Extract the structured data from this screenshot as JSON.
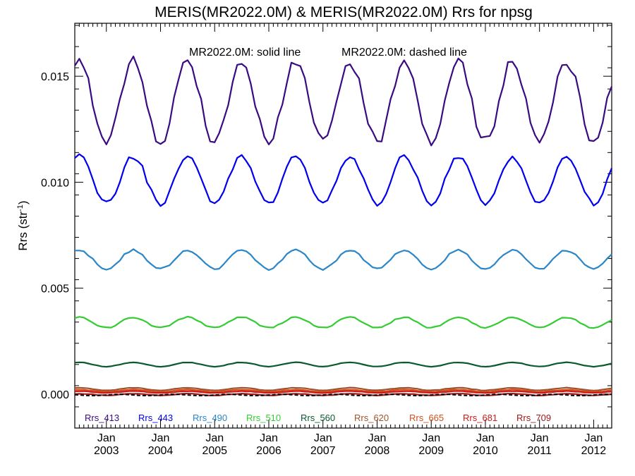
{
  "chart_data": {
    "type": "line",
    "title": "MERIS(MR2022.0M) & MERIS(MR2022.0M)  Rrs for npsg",
    "annotations": {
      "solid": "MR2022.0M: solid line",
      "dashed": "MR2022.0M: dashed line"
    },
    "ylabel": "Rrs (str",
    "ylabel_sup": "-1",
    "ylabel_close": ")",
    "ylim": [
      -0.0016,
      0.0175
    ],
    "xlim": [
      "2002-06",
      "2012-05"
    ],
    "y_ticks": [
      {
        "value": 0.0,
        "label": "0.000"
      },
      {
        "value": 0.005,
        "label": "0.005"
      },
      {
        "value": 0.01,
        "label": "0.010"
      },
      {
        "value": 0.015,
        "label": "0.015"
      }
    ],
    "x_ticks": [
      {
        "date": "2003-01",
        "month": "Jan",
        "year": "2003"
      },
      {
        "date": "2004-01",
        "month": "Jan",
        "year": "2004"
      },
      {
        "date": "2005-01",
        "month": "Jan",
        "year": "2005"
      },
      {
        "date": "2006-01",
        "month": "Jan",
        "year": "2006"
      },
      {
        "date": "2007-01",
        "month": "Jan",
        "year": "2007"
      },
      {
        "date": "2008-01",
        "month": "Jan",
        "year": "2008"
      },
      {
        "date": "2009-01",
        "month": "Jan",
        "year": "2009"
      },
      {
        "date": "2010-01",
        "month": "Jan",
        "year": "2010"
      },
      {
        "date": "2011-01",
        "month": "Jan",
        "year": "2011"
      },
      {
        "date": "2012-01",
        "month": "Jan",
        "year": "2012"
      }
    ],
    "series": [
      {
        "name": "Rrs_413",
        "color": "#3a0a82",
        "base": 0.0138,
        "amp": 0.0019,
        "jitter": 0.00025
      },
      {
        "name": "Rrs_443",
        "color": "#0000ee",
        "base": 0.0101,
        "amp": 0.00112,
        "jitter": 0.00012
      },
      {
        "name": "Rrs_490",
        "color": "#2b86c8",
        "base": 0.00635,
        "amp": 0.00045,
        "jitter": 5e-05
      },
      {
        "name": "Rrs_510",
        "color": "#33cc33",
        "base": 0.00338,
        "amp": 0.00025,
        "jitter": 3e-05
      },
      {
        "name": "Rrs_560",
        "color": "#0b5a2e",
        "base": 0.0014,
        "amp": 0.0001,
        "jitter": 1e-05
      },
      {
        "name": "Rrs_620",
        "color": "#a0522d",
        "base": 0.00024,
        "amp": 6e-05,
        "jitter": 1e-05
      },
      {
        "name": "Rrs_665",
        "color": "#d2501e",
        "base": 0.00016,
        "amp": 5e-05,
        "jitter": 1e-05
      },
      {
        "name": "Rrs_681",
        "color": "#cc1a1a",
        "base": 0.0001,
        "amp": 4e-05,
        "jitter": 1e-05
      },
      {
        "name": "Rrs_709",
        "color": "#a01818",
        "base": -2e-05,
        "amp": 4e-05,
        "jitter": 1e-05
      }
    ],
    "dashed_series": [
      {
        "color": "#000000",
        "base": -4e-05,
        "amp": 3e-05
      }
    ]
  }
}
